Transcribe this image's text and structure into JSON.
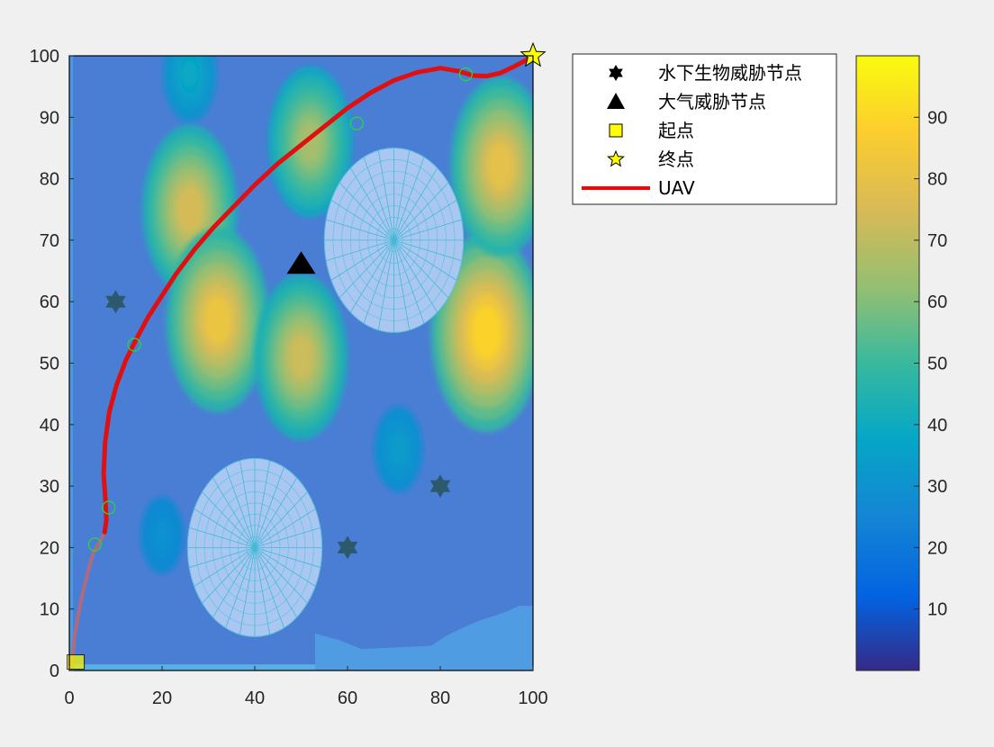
{
  "chart_data": {
    "type": "heatmap",
    "x_ticks": [
      0,
      20,
      40,
      60,
      80,
      100
    ],
    "y_ticks": [
      0,
      10,
      20,
      30,
      40,
      50,
      60,
      70,
      80,
      90,
      100
    ],
    "xlim": [
      0,
      100
    ],
    "ylim": [
      0,
      100
    ],
    "colorbar": {
      "range": [
        0,
        100
      ],
      "ticks": [
        10,
        20,
        30,
        40,
        50,
        60,
        70,
        80,
        90
      ],
      "colormap": "parula"
    },
    "threat_peaks": [
      {
        "x": 26,
        "y": 75,
        "value": 80
      },
      {
        "x": 32,
        "y": 57,
        "value": 88
      },
      {
        "x": 50,
        "y": 51,
        "value": 78
      },
      {
        "x": 52,
        "y": 86,
        "value": 70
      },
      {
        "x": 26,
        "y": 97,
        "value": 40
      },
      {
        "x": 90,
        "y": 55,
        "value": 96
      },
      {
        "x": 93,
        "y": 82,
        "value": 85
      },
      {
        "x": 71,
        "y": 36,
        "value": 35
      },
      {
        "x": 20,
        "y": 22,
        "value": 30
      }
    ],
    "dome_threats": [
      {
        "cx": 40,
        "cy": 20,
        "rx": 14.5,
        "ry": 14.5
      },
      {
        "cx": 70,
        "cy": 70,
        "rx": 15,
        "ry": 15
      }
    ],
    "underwater_threat_nodes": [
      [
        10,
        60
      ],
      [
        60,
        20
      ],
      [
        80,
        30
      ]
    ],
    "atmospheric_threat_nodes": [
      [
        50,
        66
      ]
    ],
    "start_point": [
      0.5,
      0.5
    ],
    "end_point": [
      100,
      100
    ],
    "uav_path": [
      [
        0.5,
        0.5
      ],
      [
        1.2,
        6
      ],
      [
        2.4,
        11
      ],
      [
        3.8,
        15.5
      ],
      [
        5.2,
        19.2
      ],
      [
        6.8,
        21.2
      ],
      [
        7.6,
        22.5
      ],
      [
        8.0,
        24.5
      ],
      [
        7.8,
        27.5
      ],
      [
        7.4,
        32
      ],
      [
        7.7,
        37
      ],
      [
        8.6,
        42
      ],
      [
        10.2,
        46.5
      ],
      [
        12.2,
        50.5
      ],
      [
        14.5,
        54
      ],
      [
        17,
        57.5
      ],
      [
        20,
        61
      ],
      [
        23,
        64.5
      ],
      [
        27,
        68.5
      ],
      [
        31,
        72
      ],
      [
        35.5,
        75.5
      ],
      [
        40,
        79
      ],
      [
        45,
        82.5
      ],
      [
        50,
        85.5
      ],
      [
        55,
        88.5
      ],
      [
        60,
        91.5
      ],
      [
        65,
        94
      ],
      [
        70,
        96
      ],
      [
        75,
        97.3
      ],
      [
        80,
        98
      ],
      [
        84,
        97.5
      ],
      [
        87,
        96.8
      ],
      [
        90,
        96.7
      ],
      [
        93,
        97.2
      ],
      [
        96,
        98.3
      ],
      [
        98.5,
        99.3
      ],
      [
        100,
        100
      ]
    ],
    "waypoints": [
      [
        5.5,
        20.5
      ],
      [
        8.5,
        26.5
      ],
      [
        14,
        53
      ],
      [
        62,
        89
      ],
      [
        85.5,
        97
      ]
    ],
    "legend": {
      "entries": [
        {
          "label": "水下生物威胁节点",
          "marker": "hexagram",
          "color": "#000000"
        },
        {
          "label": "大气威胁节点",
          "marker": "triangle",
          "color": "#000000"
        },
        {
          "label": "起点",
          "marker": "square",
          "color": "#ffff00"
        },
        {
          "label": "终点",
          "marker": "star",
          "color": "#ffff00"
        },
        {
          "label": "UAV",
          "marker": "line",
          "color": "#ff0000"
        }
      ],
      "position": "outside-right-top"
    }
  }
}
